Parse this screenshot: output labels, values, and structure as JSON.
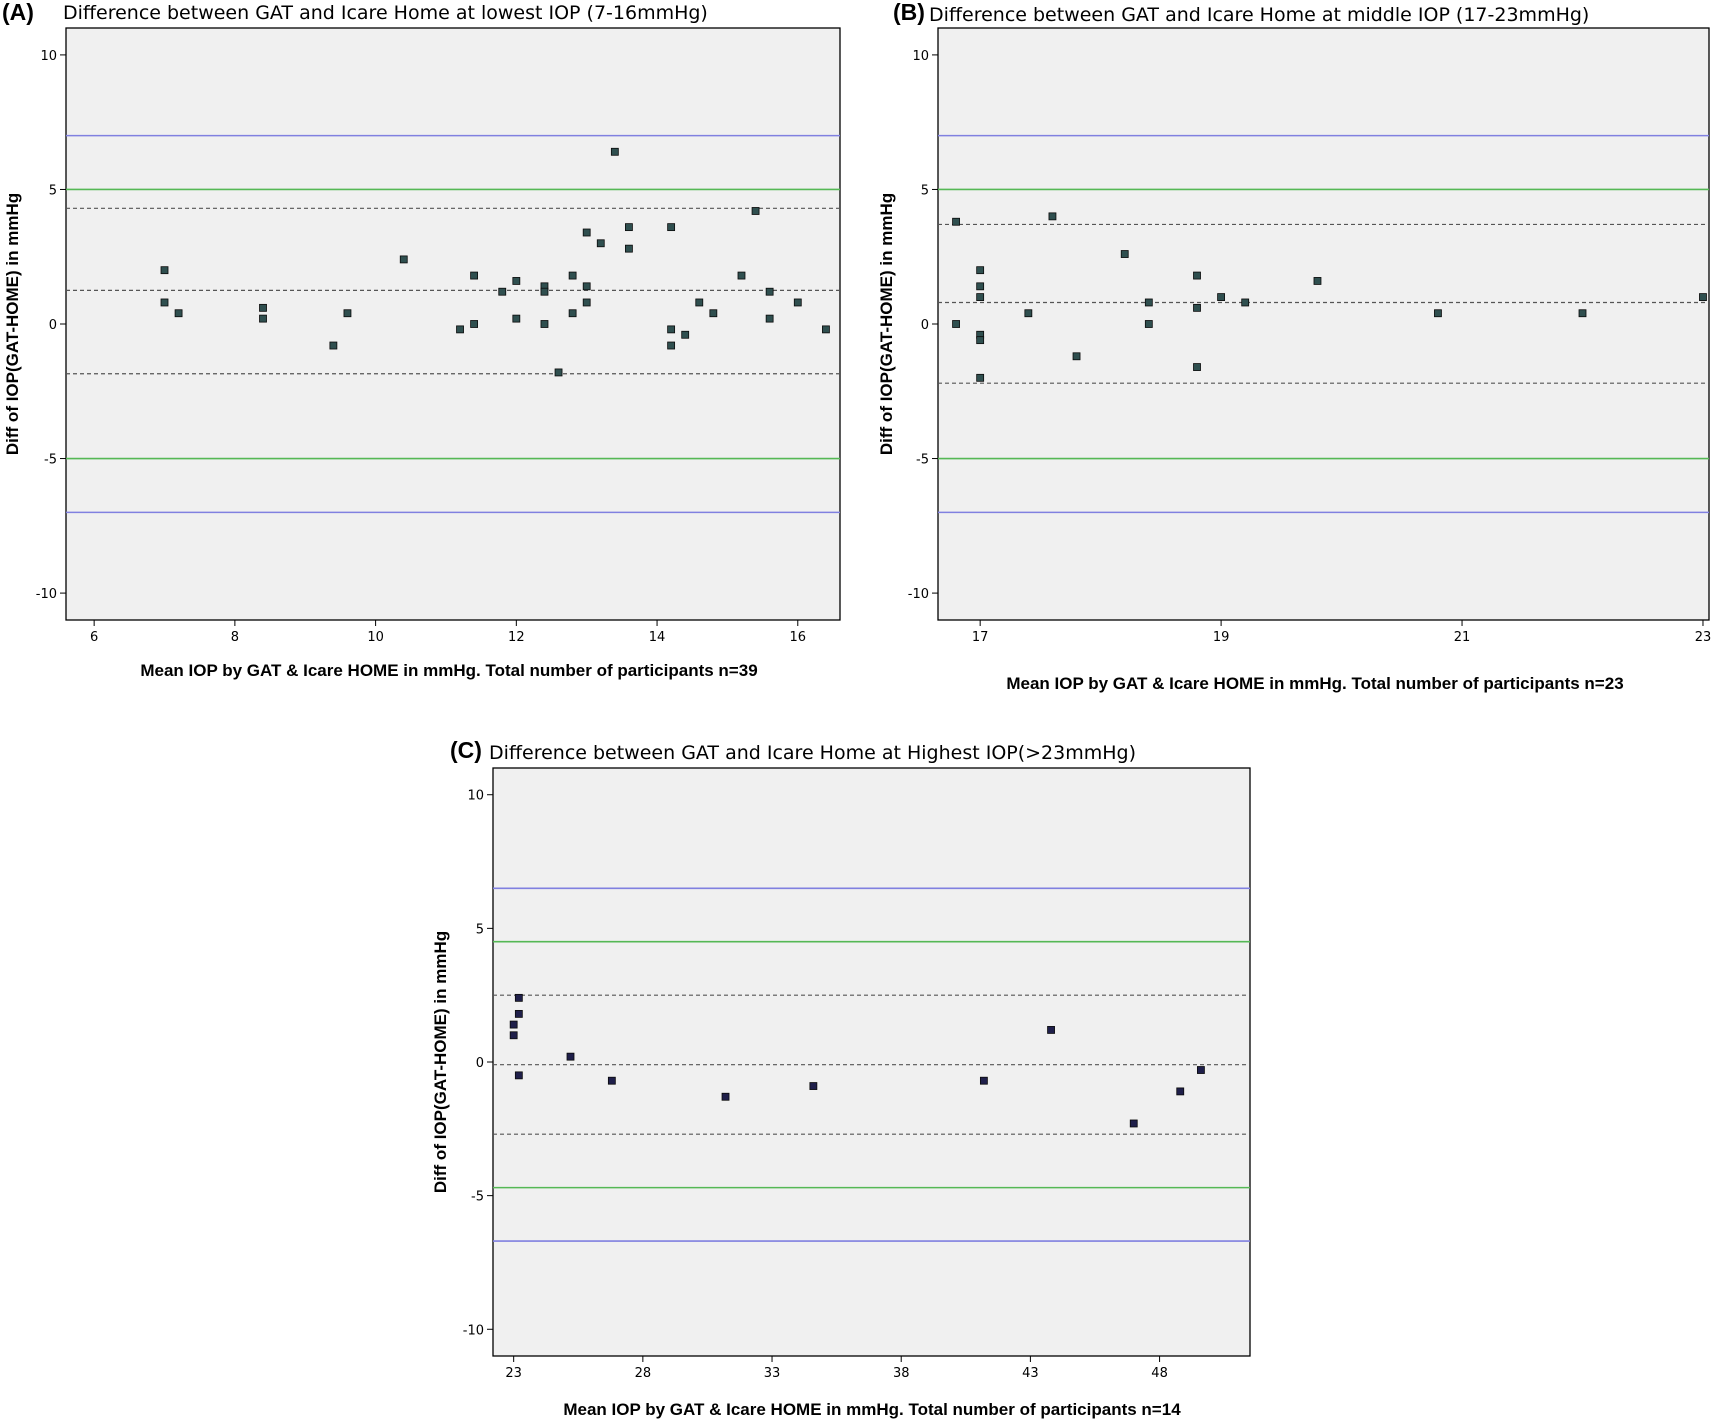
{
  "colors": {
    "plot_background": "#f0f0f0",
    "limit_outer": "#8080e0",
    "limit_inner": "#55b855",
    "reference_dashed": "#555555",
    "point_ab": "#2f4f4f",
    "point_c": "#1f1f4a"
  },
  "chart_data": [
    {
      "panel": "(A)",
      "title": "Difference between GAT and Icare Home at lowest IOP (7-16mmHg)",
      "type": "scatter",
      "xlabel": "Mean IOP by GAT & Icare HOME in mmHg. Total number of participants n=39",
      "ylabel": "Diff of IOP(GAT-HOME) in mmHg",
      "xlim": [
        5.6,
        16.6
      ],
      "ylim": [
        -11,
        11
      ],
      "xticks": [
        6,
        8,
        10,
        12,
        14,
        16
      ],
      "yticks": [
        10,
        5,
        0,
        -5,
        -10
      ],
      "hlines_outer": [
        7,
        -7
      ],
      "hlines_inner": [
        5,
        -5
      ],
      "hlines_dashed": [
        4.3,
        1.25,
        -1.85
      ],
      "grid": false,
      "points": [
        [
          7.0,
          2.0
        ],
        [
          7.0,
          0.8
        ],
        [
          7.2,
          0.4
        ],
        [
          8.4,
          0.6
        ],
        [
          8.4,
          0.2
        ],
        [
          9.4,
          -0.8
        ],
        [
          9.6,
          0.4
        ],
        [
          10.4,
          2.4
        ],
        [
          11.2,
          -0.2
        ],
        [
          11.4,
          1.8
        ],
        [
          11.4,
          0.0
        ],
        [
          11.8,
          1.2
        ],
        [
          12.0,
          1.6
        ],
        [
          12.0,
          0.2
        ],
        [
          12.4,
          1.4
        ],
        [
          12.4,
          1.2
        ],
        [
          12.4,
          0.0
        ],
        [
          12.6,
          -1.8
        ],
        [
          12.8,
          1.8
        ],
        [
          12.8,
          0.4
        ],
        [
          13.0,
          3.4
        ],
        [
          13.0,
          1.4
        ],
        [
          13.0,
          0.8
        ],
        [
          13.2,
          3.0
        ],
        [
          13.4,
          6.4
        ],
        [
          13.6,
          3.6
        ],
        [
          13.6,
          2.8
        ],
        [
          14.2,
          3.6
        ],
        [
          14.2,
          -0.2
        ],
        [
          14.2,
          -0.8
        ],
        [
          14.4,
          -0.4
        ],
        [
          14.6,
          0.8
        ],
        [
          14.8,
          0.4
        ],
        [
          15.2,
          1.8
        ],
        [
          15.4,
          4.2
        ],
        [
          15.6,
          1.2
        ],
        [
          15.6,
          0.2
        ],
        [
          16.0,
          0.8
        ],
        [
          16.4,
          -0.2
        ]
      ]
    },
    {
      "panel": "(B)",
      "title": "Difference between GAT and Icare Home at middle IOP (17-23mmHg)",
      "type": "scatter",
      "xlabel": "Mean IOP by GAT & Icare HOME in mmHg. Total number of participants n=23",
      "ylabel": "Diff of IOP(GAT-HOME) in mmHg",
      "xlim": [
        16.65,
        23.05
      ],
      "ylim": [
        -11,
        11
      ],
      "xticks": [
        17,
        19,
        21,
        23
      ],
      "yticks": [
        10,
        5,
        0,
        -5,
        -10
      ],
      "hlines_outer": [
        7,
        -7
      ],
      "hlines_inner": [
        5,
        -5
      ],
      "hlines_dashed": [
        3.7,
        0.8,
        -2.2
      ],
      "grid": false,
      "points": [
        [
          16.8,
          3.8
        ],
        [
          16.8,
          0.0
        ],
        [
          17.0,
          2.0
        ],
        [
          17.0,
          1.4
        ],
        [
          17.0,
          1.0
        ],
        [
          17.0,
          -0.4
        ],
        [
          17.0,
          -0.6
        ],
        [
          17.0,
          -2.0
        ],
        [
          17.4,
          0.4
        ],
        [
          17.6,
          4.0
        ],
        [
          17.8,
          -1.2
        ],
        [
          18.2,
          2.6
        ],
        [
          18.4,
          0.8
        ],
        [
          18.4,
          0.0
        ],
        [
          18.8,
          1.8
        ],
        [
          18.8,
          0.6
        ],
        [
          18.8,
          -1.6
        ],
        [
          19.0,
          1.0
        ],
        [
          19.2,
          0.8
        ],
        [
          19.8,
          1.6
        ],
        [
          20.8,
          0.4
        ],
        [
          22.0,
          0.4
        ],
        [
          23.0,
          1.0
        ]
      ]
    },
    {
      "panel": "(C)",
      "title": "Difference between GAT and Icare Home at Highest IOP(>23mmHg)",
      "type": "scatter",
      "xlabel": "Mean IOP by GAT & Icare HOME in mmHg. Total number of participants n=14",
      "ylabel": "Diff of IOP(GAT-HOME) in mmHg",
      "xlim": [
        22.2,
        51.5
      ],
      "ylim": [
        -11,
        11
      ],
      "xticks": [
        23,
        28,
        33,
        38,
        43,
        48
      ],
      "yticks": [
        10,
        5,
        0,
        -5,
        -10
      ],
      "hlines_outer": [
        6.5,
        -6.7
      ],
      "hlines_inner": [
        4.5,
        -4.7
      ],
      "hlines_dashed": [
        2.5,
        -0.1,
        -2.7
      ],
      "grid": false,
      "points": [
        [
          23.0,
          1.4
        ],
        [
          23.0,
          1.0
        ],
        [
          23.2,
          2.4
        ],
        [
          23.2,
          1.8
        ],
        [
          23.2,
          -0.5
        ],
        [
          25.2,
          0.2
        ],
        [
          26.8,
          -0.7
        ],
        [
          31.2,
          -1.3
        ],
        [
          34.6,
          -0.9
        ],
        [
          41.2,
          -0.7
        ],
        [
          43.8,
          1.2
        ],
        [
          47.0,
          -2.3
        ],
        [
          48.8,
          -1.1
        ],
        [
          49.6,
          -0.3
        ]
      ]
    }
  ]
}
